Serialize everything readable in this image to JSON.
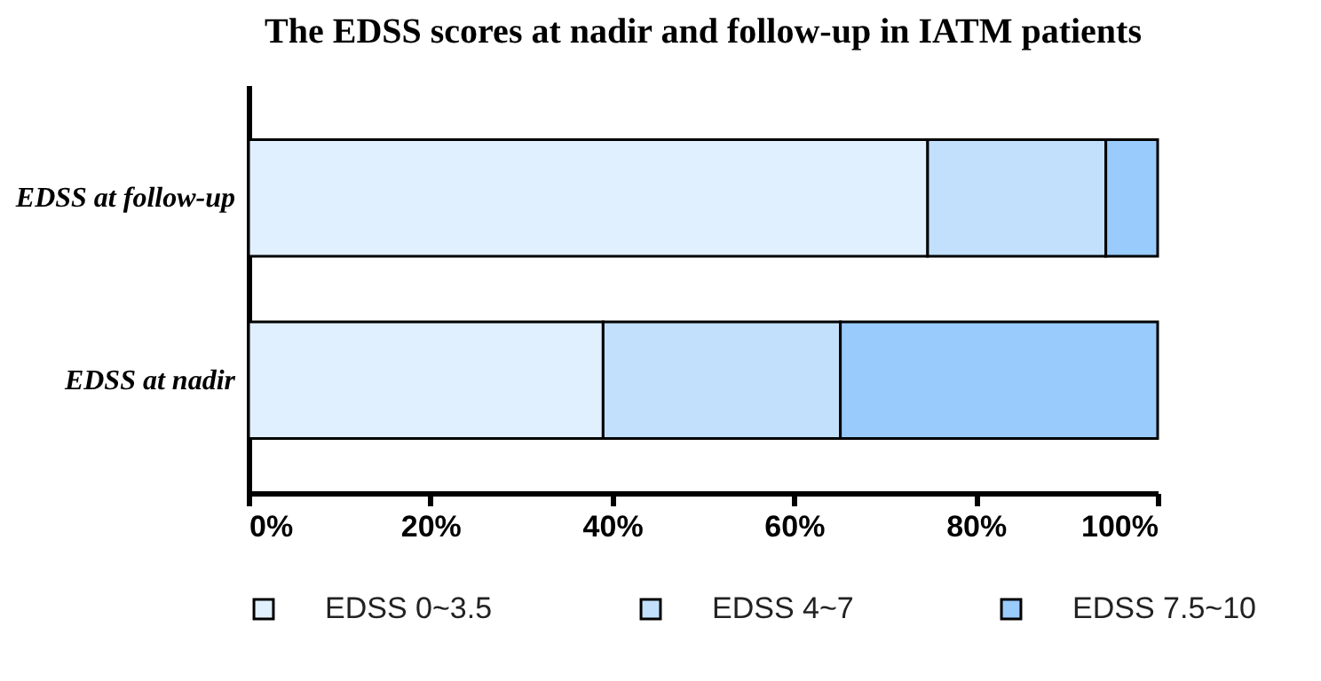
{
  "chart_data": {
    "type": "bar",
    "title": "The EDSS scores at nadir and follow-up in IATM patients",
    "orientation": "horizontal",
    "stacked": true,
    "categories": [
      "EDSS at follow-up",
      "EDSS at nadir"
    ],
    "series": [
      {
        "name": "EDSS 0~3.5",
        "color": "#e1f0ff",
        "values": [
          74.7,
          39.0
        ]
      },
      {
        "name": "EDSS 4~7",
        "color": "#c2e0fc",
        "values": [
          19.6,
          26.1
        ]
      },
      {
        "name": "EDSS 7.5~10",
        "color": "#99cbfc",
        "values": [
          5.7,
          34.9
        ]
      }
    ],
    "xlim": [
      0,
      100
    ],
    "xticks": [
      {
        "value": 0,
        "label": "0%"
      },
      {
        "value": 20,
        "label": "20%"
      },
      {
        "value": 40,
        "label": "40%"
      },
      {
        "value": 60,
        "label": "60%"
      },
      {
        "value": 80,
        "label": "80%"
      },
      {
        "value": 100,
        "label": "100%"
      }
    ],
    "grid": false,
    "legend": "bottom"
  }
}
